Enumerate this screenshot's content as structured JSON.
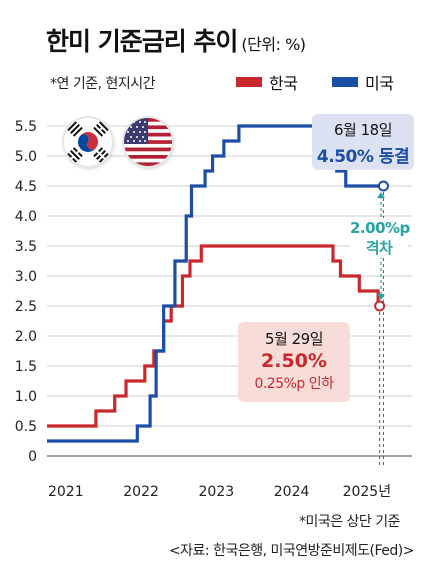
{
  "header": {
    "title": "한미 기준금리 추이",
    "unit": "(단위: %)",
    "note": "*연 기준, 현지시간"
  },
  "legend": {
    "korea": "한국",
    "usa": "미국"
  },
  "colors": {
    "korea": "#c9282d",
    "usa": "#1b4fa6",
    "gap": "#2aa3a3"
  },
  "flags": [
    "korea-flag-icon",
    "usa-flag-icon"
  ],
  "callouts": {
    "usa_date": "6월 18일",
    "usa_value": "4.50% 동결",
    "korea_date": "5월 29일",
    "korea_value": "2.50%",
    "korea_change": "0.25%p 인하",
    "gap_value": "2.00%p",
    "gap_label": "격차"
  },
  "footer": {
    "note": "*미국은 상단 기준",
    "source": "<자료: 한국은행, 미국연방준비제도(Fed)>"
  },
  "chart_data": {
    "type": "line",
    "step": true,
    "xlabel": "",
    "ylabel": "",
    "xlim": [
      2021.0,
      2025.85
    ],
    "ylim": [
      0,
      5.5
    ],
    "yticks": [
      "0",
      "0.5",
      "1.0",
      "1.5",
      "2.0",
      "2.5",
      "3.0",
      "3.5",
      "4.0",
      "4.5",
      "5.0",
      "5.5"
    ],
    "xticks": [
      {
        "value": 2021.25,
        "label": "2021"
      },
      {
        "value": 2022.25,
        "label": "2022"
      },
      {
        "value": 2023.25,
        "label": "2023"
      },
      {
        "value": 2024.25,
        "label": "2024"
      },
      {
        "value": 2025.25,
        "label": "2025년"
      }
    ],
    "grid": "horizontal",
    "series": [
      {
        "name": "한국",
        "color": "#c9282d",
        "points": [
          [
            2021.0,
            0.5
          ],
          [
            2021.65,
            0.75
          ],
          [
            2021.9,
            1.0
          ],
          [
            2022.05,
            1.25
          ],
          [
            2022.3,
            1.5
          ],
          [
            2022.42,
            1.75
          ],
          [
            2022.55,
            2.25
          ],
          [
            2022.65,
            2.5
          ],
          [
            2022.8,
            3.0
          ],
          [
            2022.9,
            3.25
          ],
          [
            2023.05,
            3.5
          ],
          [
            2024.8,
            3.25
          ],
          [
            2024.9,
            3.0
          ],
          [
            2025.15,
            2.75
          ],
          [
            2025.4,
            2.5
          ]
        ],
        "end_x": 2025.42
      },
      {
        "name": "미국",
        "color": "#1b4fa6",
        "points": [
          [
            2021.0,
            0.25
          ],
          [
            2022.2,
            0.5
          ],
          [
            2022.37,
            1.0
          ],
          [
            2022.45,
            1.75
          ],
          [
            2022.55,
            2.5
          ],
          [
            2022.7,
            3.25
          ],
          [
            2022.85,
            4.0
          ],
          [
            2022.92,
            4.5
          ],
          [
            2023.1,
            4.75
          ],
          [
            2023.2,
            5.0
          ],
          [
            2023.35,
            5.25
          ],
          [
            2023.55,
            5.5
          ],
          [
            2024.72,
            5.0
          ],
          [
            2024.85,
            4.75
          ],
          [
            2024.97,
            4.5
          ]
        ],
        "end_x": 2025.47
      }
    ]
  }
}
